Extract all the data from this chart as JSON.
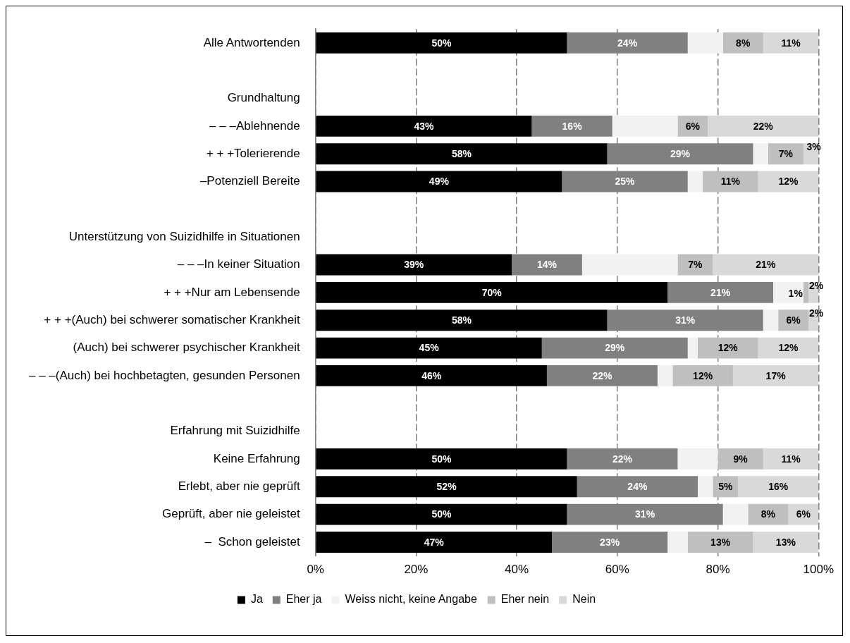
{
  "chart_data": {
    "type": "bar",
    "orientation": "horizontal",
    "stacked": true,
    "categories": [
      "Alle Antwortenden",
      null,
      "Grundhaltung",
      "– – –Ablehnende",
      "+ + +Tolerierende",
      "–Potenziell Bereite",
      null,
      "Unterstützung von Suizidhilfe in Situationen",
      "– – –In keiner Situation",
      "+ + +Nur am Lebensende",
      "+ + +(Auch) bei schwerer somatischer Krankheit",
      "(Auch) bei schwerer psychischer Krankheit",
      "– – –(Auch) bei hochbetagten, gesunden Personen",
      null,
      "Erfahrung mit Suizidhilfe",
      "Keine Erfahrung",
      "Erlebt, aber nie geprüft",
      "Geprüft, aber nie geleistet",
      "–  Schon geleistet"
    ],
    "series": [
      {
        "name": "Ja",
        "color": "#000000",
        "values": [
          50,
          null,
          null,
          43,
          58,
          49,
          null,
          null,
          39,
          70,
          58,
          45,
          46,
          null,
          null,
          50,
          52,
          50,
          47
        ],
        "value_labels": [
          "50%",
          null,
          null,
          "43%",
          "58%",
          "49%",
          null,
          null,
          "39%",
          "70%",
          "58%",
          "45%",
          "46%",
          null,
          null,
          "50%",
          "52%",
          "50%",
          "47%"
        ]
      },
      {
        "name": "Eher ja",
        "color": "#808080",
        "values": [
          24,
          null,
          null,
          16,
          29,
          25,
          null,
          null,
          14,
          21,
          31,
          29,
          22,
          null,
          null,
          22,
          24,
          31,
          23
        ],
        "value_labels": [
          "24%",
          null,
          null,
          "16%",
          "29%",
          "25%",
          null,
          null,
          "14%",
          "21%",
          "31%",
          "29%",
          "22%",
          null,
          null,
          "22%",
          "24%",
          "31%",
          "23%"
        ]
      },
      {
        "name": "Weiss nicht, keine Angabe",
        "color": "#f2f2f2",
        "values": [
          7,
          null,
          null,
          13,
          3,
          3,
          null,
          null,
          19,
          6,
          3,
          2,
          3,
          null,
          null,
          8,
          3,
          5,
          4
        ]
      },
      {
        "name": "Eher nein",
        "color": "#bfbfbf",
        "values": [
          8,
          null,
          null,
          6,
          7,
          11,
          null,
          null,
          7,
          1,
          6,
          12,
          12,
          null,
          null,
          9,
          5,
          8,
          13
        ],
        "value_labels": [
          "8%",
          null,
          null,
          "6%",
          "7%",
          "11%",
          null,
          null,
          "7%",
          "1%",
          "6%",
          "12%",
          "12%",
          null,
          null,
          "9%",
          "5%",
          "8%",
          "13%"
        ]
      },
      {
        "name": "Nein",
        "color": "#d9d9d9",
        "values": [
          11,
          null,
          null,
          22,
          3,
          12,
          null,
          null,
          21,
          2,
          2,
          12,
          17,
          null,
          null,
          11,
          16,
          6,
          13
        ],
        "value_labels": [
          "11%",
          null,
          null,
          "22%",
          "3%",
          "12%",
          null,
          null,
          "21%",
          "2%",
          "2%",
          "12%",
          "17%",
          null,
          null,
          "11%",
          "16%",
          "6%",
          "13%"
        ]
      }
    ],
    "xlim": [
      0,
      100
    ],
    "xticks": [
      {
        "value": 0,
        "label": "0%"
      },
      {
        "value": 20,
        "label": "20%"
      },
      {
        "value": 40,
        "label": "40%"
      },
      {
        "value": 60,
        "label": "60%"
      },
      {
        "value": 80,
        "label": "80%"
      },
      {
        "value": 100,
        "label": "100%"
      }
    ],
    "grid": "x",
    "legend": "bottom"
  }
}
